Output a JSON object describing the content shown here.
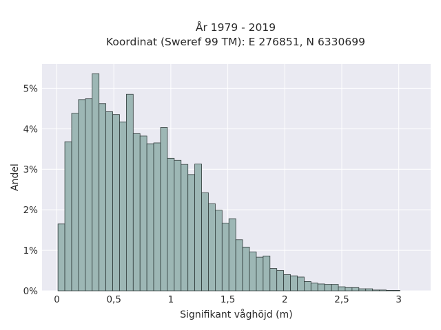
{
  "chart_data": {
    "type": "bar",
    "title_lines": [
      "År 1979 - 2019",
      "Koordinat (Sweref 99 TM): E 276851, N 6330699"
    ],
    "xlabel": "Signifikant våghöjd (m)",
    "ylabel": "Andel",
    "x_tick_values": [
      0,
      0.5,
      1,
      1.5,
      2,
      2.5,
      3
    ],
    "x_tick_labels": [
      "0",
      "0,5",
      "1",
      "1,5",
      "2",
      "2,5",
      "3"
    ],
    "y_tick_values": [
      0,
      1,
      2,
      3,
      4,
      5
    ],
    "y_tick_labels": [
      "0%",
      "1%",
      "2%",
      "3%",
      "4%",
      "5%"
    ],
    "xlim": [
      -0.13,
      3.28
    ],
    "ylim": [
      0,
      5.6
    ],
    "bin_width": 0.06,
    "bin_start": 0.01,
    "values": [
      1.65,
      3.68,
      4.38,
      4.72,
      4.74,
      5.36,
      4.62,
      4.42,
      4.35,
      4.17,
      4.85,
      3.88,
      3.82,
      3.63,
      3.65,
      4.03,
      3.27,
      3.22,
      3.12,
      2.87,
      3.13,
      2.42,
      2.15,
      1.99,
      1.67,
      1.78,
      1.26,
      1.08,
      0.96,
      0.83,
      0.86,
      0.55,
      0.5,
      0.4,
      0.37,
      0.34,
      0.23,
      0.19,
      0.17,
      0.16,
      0.16,
      0.1,
      0.08,
      0.08,
      0.05,
      0.05,
      0.02,
      0.02,
      0.01,
      0.01
    ],
    "grid": true,
    "colors": {
      "bar_fill": "#9db7b5",
      "bar_edge": "#2f3b3a",
      "plot_background": "#eaeaf2",
      "grid": "#ffffff"
    }
  }
}
